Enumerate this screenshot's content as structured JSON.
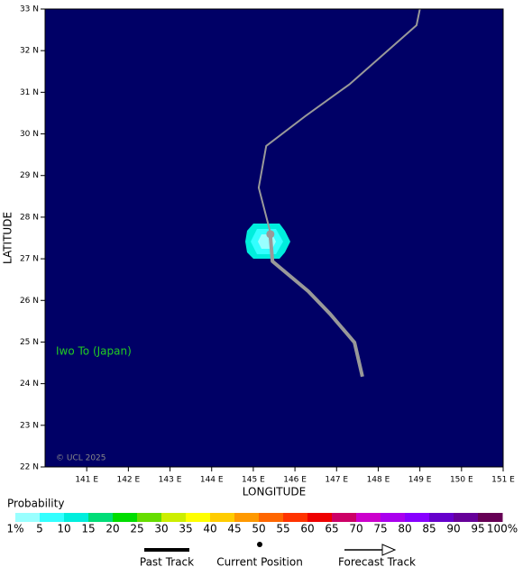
{
  "chart_data": {
    "type": "map",
    "background": "#000066",
    "xlabel": "LONGITUDE",
    "ylabel": "LATITUDE",
    "annotation": "Iwo To (Japan)",
    "credit": "© UCL 2025",
    "xlim": [
      140,
      151
    ],
    "ylim": [
      22,
      33
    ],
    "xticks": [
      {
        "value": 141,
        "label": "141 E"
      },
      {
        "value": 142,
        "label": "142 E"
      },
      {
        "value": 143,
        "label": "143 E"
      },
      {
        "value": 144,
        "label": "144 E"
      },
      {
        "value": 145,
        "label": "145 E"
      },
      {
        "value": 146,
        "label": "146 E"
      },
      {
        "value": 147,
        "label": "147 E"
      },
      {
        "value": 148,
        "label": "148 E"
      },
      {
        "value": 149,
        "label": "149 E"
      },
      {
        "value": 150,
        "label": "150 E"
      },
      {
        "value": 151,
        "label": "151 E"
      }
    ],
    "yticks": [
      {
        "value": 22,
        "label": "22 N"
      },
      {
        "value": 23,
        "label": "23 N"
      },
      {
        "value": 24,
        "label": "24 N"
      },
      {
        "value": 25,
        "label": "25 N"
      },
      {
        "value": 26,
        "label": "26 N"
      },
      {
        "value": 27,
        "label": "27 N"
      },
      {
        "value": 28,
        "label": "28 N"
      },
      {
        "value": 29,
        "label": "29 N"
      },
      {
        "value": 30,
        "label": "30 N"
      },
      {
        "value": 31,
        "label": "31 N"
      },
      {
        "value": 32,
        "label": "32 N"
      },
      {
        "value": 33,
        "label": "33 N"
      }
    ],
    "series": [
      {
        "name": "Past Track",
        "color": "#999999",
        "x": [
          147.62,
          147.43,
          146.84,
          146.32,
          145.46,
          145.41
        ],
        "values": [
          24.17,
          24.99,
          25.68,
          26.22,
          26.94,
          27.54
        ]
      },
      {
        "name": "Current Position",
        "color": "#999999",
        "x": [
          145.41
        ],
        "values": [
          27.59
        ]
      },
      {
        "name": "Forecast Track",
        "color": "#999999",
        "x": [
          145.41,
          145.13,
          145.31,
          146.28,
          147.32,
          148.92,
          149.0
        ],
        "values": [
          27.63,
          28.71,
          29.71,
          30.45,
          31.2,
          32.61,
          33.0
        ]
      }
    ],
    "colorbar": {
      "title": "Probability",
      "colors": [
        "#99ffff",
        "#33ffff",
        "#00eedd",
        "#00dd77",
        "#00dd00",
        "#66dd00",
        "#ccee00",
        "#ffff00",
        "#ffcc00",
        "#ff9900",
        "#ff6600",
        "#ff3300",
        "#ee0000",
        "#cc0066",
        "#cc00cc",
        "#aa00ee",
        "#8800ff",
        "#6600cc",
        "#660099",
        "#660055"
      ],
      "ticks": [
        {
          "value": 1,
          "label": "1%"
        },
        5,
        10,
        15,
        20,
        25,
        30,
        35,
        40,
        45,
        50,
        55,
        60,
        65,
        70,
        75,
        80,
        85,
        90,
        95,
        {
          "value": 100,
          "label": "100%"
        }
      ]
    }
  }
}
